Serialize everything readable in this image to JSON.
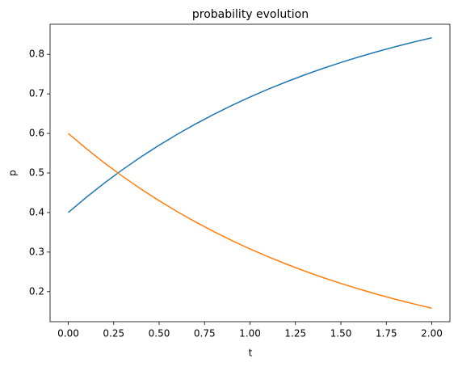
{
  "chart_data": {
    "type": "line",
    "title": "probability evolution",
    "xlabel": "t",
    "ylabel": "p",
    "x": [
      0,
      0.1,
      0.2,
      0.3,
      0.4,
      0.5,
      0.6,
      0.7,
      0.8,
      0.9,
      1.0,
      1.1,
      1.2,
      1.3,
      1.4,
      1.5,
      1.6,
      1.7,
      1.8,
      1.9,
      2.0
    ],
    "series": [
      {
        "color": "#1f77b4",
        "values": [
          0.4,
          0.4387,
          0.4749,
          0.5088,
          0.5405,
          0.5701,
          0.5978,
          0.6237,
          0.648,
          0.6707,
          0.692,
          0.7118,
          0.7304,
          0.7478,
          0.7641,
          0.7793,
          0.7935,
          0.8068,
          0.8193,
          0.8309,
          0.8418
        ]
      },
      {
        "color": "#ff7f0e",
        "values": [
          0.6,
          0.5613,
          0.5251,
          0.4912,
          0.4595,
          0.4299,
          0.4022,
          0.3763,
          0.352,
          0.3293,
          0.308,
          0.2882,
          0.2696,
          0.2522,
          0.2359,
          0.2207,
          0.2065,
          0.1932,
          0.1807,
          0.1691,
          0.1582
        ]
      }
    ],
    "xlim": [
      -0.1,
      2.1
    ],
    "xticks": [
      {
        "value": 0,
        "label": "0.00"
      },
      {
        "value": 0.25,
        "label": "0.25"
      },
      {
        "value": 0.5,
        "label": "0.50"
      },
      {
        "value": 0.75,
        "label": "0.75"
      },
      {
        "value": 1.0,
        "label": "1.00"
      },
      {
        "value": 1.25,
        "label": "1.25"
      },
      {
        "value": 1.5,
        "label": "1.50"
      },
      {
        "value": 1.75,
        "label": "1.75"
      },
      {
        "value": 2.0,
        "label": "2.00"
      }
    ],
    "ylim": [
      0.124,
      0.876
    ],
    "yticks": [
      0.2,
      0.3,
      0.4,
      0.5,
      0.6,
      0.7,
      0.8
    ]
  }
}
